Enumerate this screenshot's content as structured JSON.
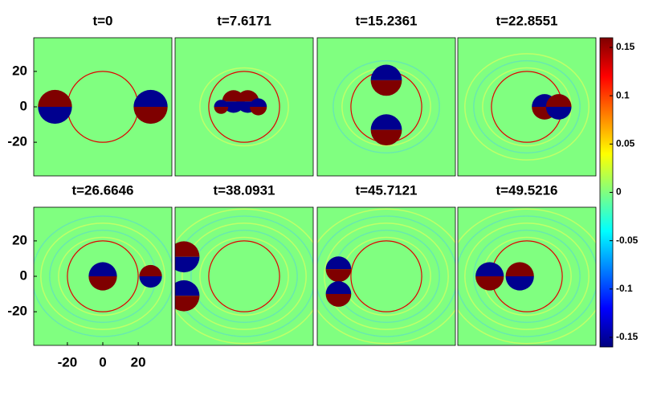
{
  "chart_data": {
    "type": "field-grid",
    "panels": [
      {
        "title": "t=0"
      },
      {
        "title": "t=7.6171"
      },
      {
        "title": "t=15.2361"
      },
      {
        "title": "t=22.8551"
      },
      {
        "title": "t=26.6646"
      },
      {
        "title": "t=38.0931"
      },
      {
        "title": "t=45.7121"
      },
      {
        "title": "t=49.5216"
      }
    ],
    "xlim": [
      -39,
      39
    ],
    "ylim": [
      -39,
      39
    ],
    "xticks": [
      -20,
      0,
      20
    ],
    "yticks": [
      20,
      0,
      -20
    ],
    "colorbar": {
      "lim": [
        -0.16,
        0.16
      ],
      "ticks": [
        0.15,
        0.1,
        0.05,
        0,
        -0.05,
        -0.1,
        -0.15
      ]
    }
  }
}
